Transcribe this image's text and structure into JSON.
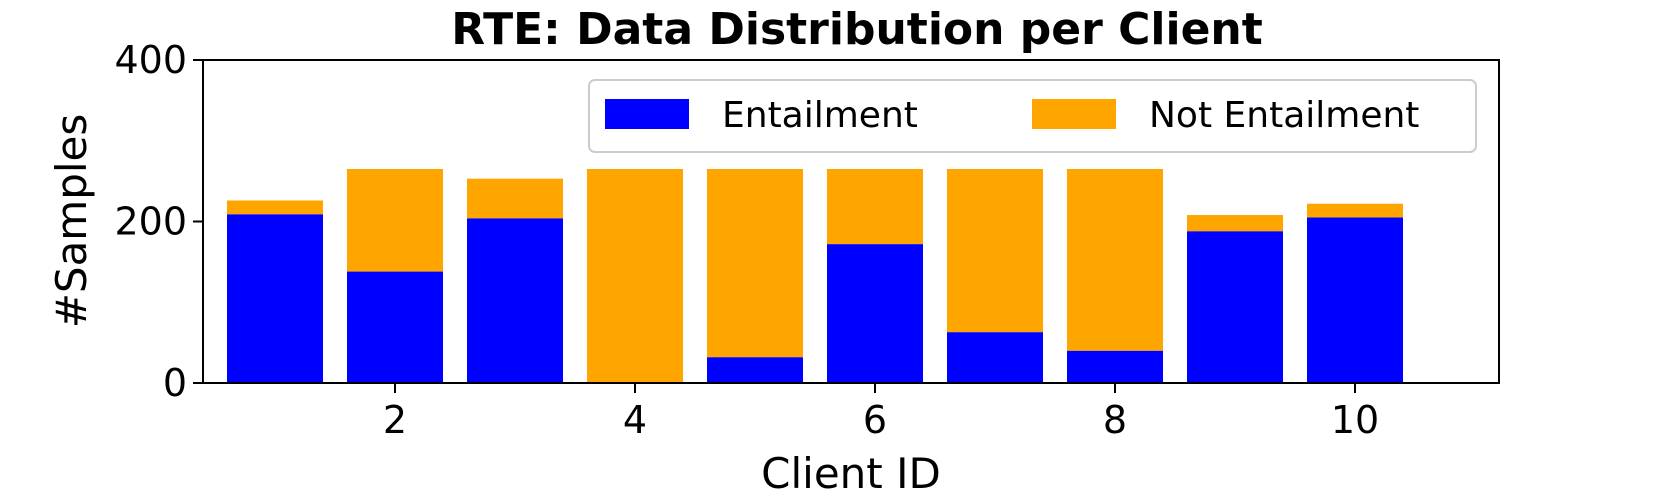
{
  "chart_data": {
    "type": "bar",
    "stacked": true,
    "title": "RTE: Data Distribution per Client",
    "xlabel": "Client ID",
    "ylabel": "#Samples",
    "x": [
      1,
      2,
      3,
      4,
      5,
      6,
      7,
      8,
      9,
      10
    ],
    "xticks": [
      2,
      4,
      6,
      8,
      10
    ],
    "yticks": [
      0,
      200,
      400
    ],
    "xlim": [
      0.4,
      11.2
    ],
    "ylim": [
      0,
      400
    ],
    "grid": false,
    "legend_position": "top-right",
    "series": [
      {
        "name": "Entailment",
        "color": "#0000ff",
        "values": [
          209,
          138,
          204,
          0,
          32,
          172,
          63,
          40,
          188,
          205
        ]
      },
      {
        "name": "Not Entailment",
        "color": "#ffa500",
        "values": [
          17,
          127,
          49,
          265,
          233,
          93,
          202,
          225,
          20,
          17
        ]
      }
    ]
  }
}
